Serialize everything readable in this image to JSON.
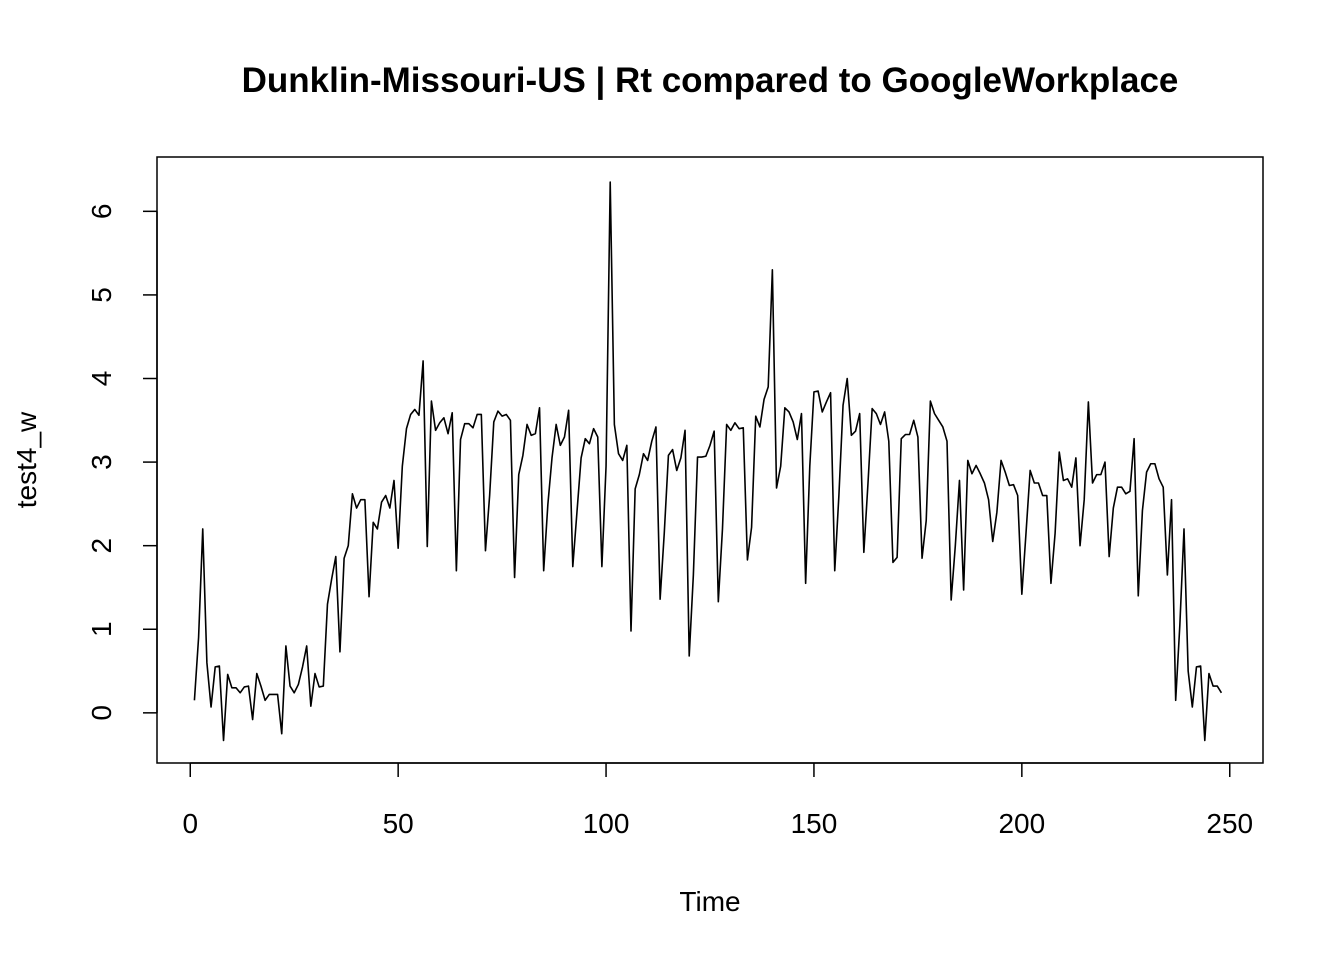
{
  "chart_data": {
    "type": "line",
    "title": "Dunklin-Missouri-US | Rt compared to GoogleWorkplace",
    "xlabel": "Time",
    "ylabel": "test4_w",
    "xlim": [
      -8,
      258
    ],
    "ylim": [
      -0.6,
      6.65
    ],
    "x_ticks": [
      0,
      50,
      100,
      150,
      200,
      250
    ],
    "x_tick_labels": [
      "0",
      "50",
      "100",
      "150",
      "200",
      "250"
    ],
    "y_ticks": [
      0,
      1,
      2,
      3,
      4,
      5,
      6
    ],
    "y_tick_labels": [
      "0",
      "1",
      "2",
      "3",
      "4",
      "5",
      "6"
    ],
    "grid": false,
    "legend": "none",
    "color": "#000000",
    "x_start": 1,
    "x_step": 1,
    "values": [
      0.15,
      0.9,
      2.2,
      0.6,
      0.07,
      0.55,
      0.56,
      -0.33,
      0.46,
      0.3,
      0.3,
      0.24,
      0.31,
      0.32,
      -0.08,
      0.47,
      0.32,
      0.15,
      0.22,
      0.22,
      0.22,
      -0.25,
      0.8,
      0.32,
      0.24,
      0.34,
      0.55,
      0.8,
      0.08,
      0.47,
      0.31,
      0.32,
      1.3,
      1.6,
      1.87,
      0.73,
      1.85,
      2.0,
      2.62,
      2.45,
      2.55,
      2.55,
      1.39,
      2.28,
      2.2,
      2.52,
      2.6,
      2.45,
      2.78,
      1.97,
      2.95,
      3.4,
      3.57,
      3.63,
      3.56,
      4.21,
      1.99,
      3.73,
      3.38,
      3.47,
      3.53,
      3.34,
      3.59,
      1.7,
      3.27,
      3.46,
      3.46,
      3.41,
      3.57,
      3.57,
      1.94,
      2.6,
      3.48,
      3.61,
      3.55,
      3.57,
      3.5,
      1.62,
      2.85,
      3.08,
      3.45,
      3.32,
      3.34,
      3.65,
      1.7,
      2.49,
      3.05,
      3.45,
      3.2,
      3.3,
      3.62,
      1.75,
      2.4,
      3.05,
      3.28,
      3.22,
      3.4,
      3.3,
      1.75,
      2.95,
      6.35,
      3.45,
      3.1,
      3.02,
      3.2,
      0.98,
      2.68,
      2.85,
      3.1,
      3.02,
      3.25,
      3.42,
      1.36,
      2.15,
      3.08,
      3.15,
      2.9,
      3.05,
      3.38,
      0.68,
      1.65,
      3.06,
      3.06,
      3.07,
      3.2,
      3.37,
      1.33,
      2.2,
      3.45,
      3.38,
      3.47,
      3.4,
      3.41,
      1.83,
      2.22,
      3.55,
      3.42,
      3.75,
      3.9,
      5.3,
      2.69,
      2.95,
      3.65,
      3.6,
      3.48,
      3.27,
      3.58,
      1.55,
      2.95,
      3.84,
      3.85,
      3.6,
      3.72,
      3.83,
      1.7,
      2.6,
      3.68,
      4.0,
      3.32,
      3.37,
      3.58,
      1.92,
      2.75,
      3.64,
      3.58,
      3.45,
      3.6,
      3.25,
      1.8,
      1.86,
      3.28,
      3.33,
      3.33,
      3.5,
      3.3,
      1.85,
      2.3,
      3.73,
      3.58,
      3.5,
      3.42,
      3.25,
      1.35,
      2.0,
      2.78,
      1.47,
      3.02,
      2.86,
      2.96,
      2.86,
      2.75,
      2.55,
      2.05,
      2.4,
      3.02,
      2.88,
      2.72,
      2.73,
      2.6,
      1.42,
      2.15,
      2.9,
      2.75,
      2.75,
      2.6,
      2.6,
      1.55,
      2.15,
      3.12,
      2.78,
      2.8,
      2.7,
      3.05,
      2.0,
      2.55,
      3.72,
      2.75,
      2.85,
      2.85,
      3.0,
      1.87,
      2.45,
      2.7,
      2.7,
      2.62,
      2.65,
      3.28,
      1.4,
      2.42,
      2.88,
      2.98,
      2.98,
      2.8,
      2.7,
      1.65,
      2.55,
      0.15,
      1.05,
      2.2,
      0.5,
      0.07,
      0.55,
      0.56,
      -0.33,
      0.47,
      0.32,
      0.32,
      0.24
    ]
  }
}
